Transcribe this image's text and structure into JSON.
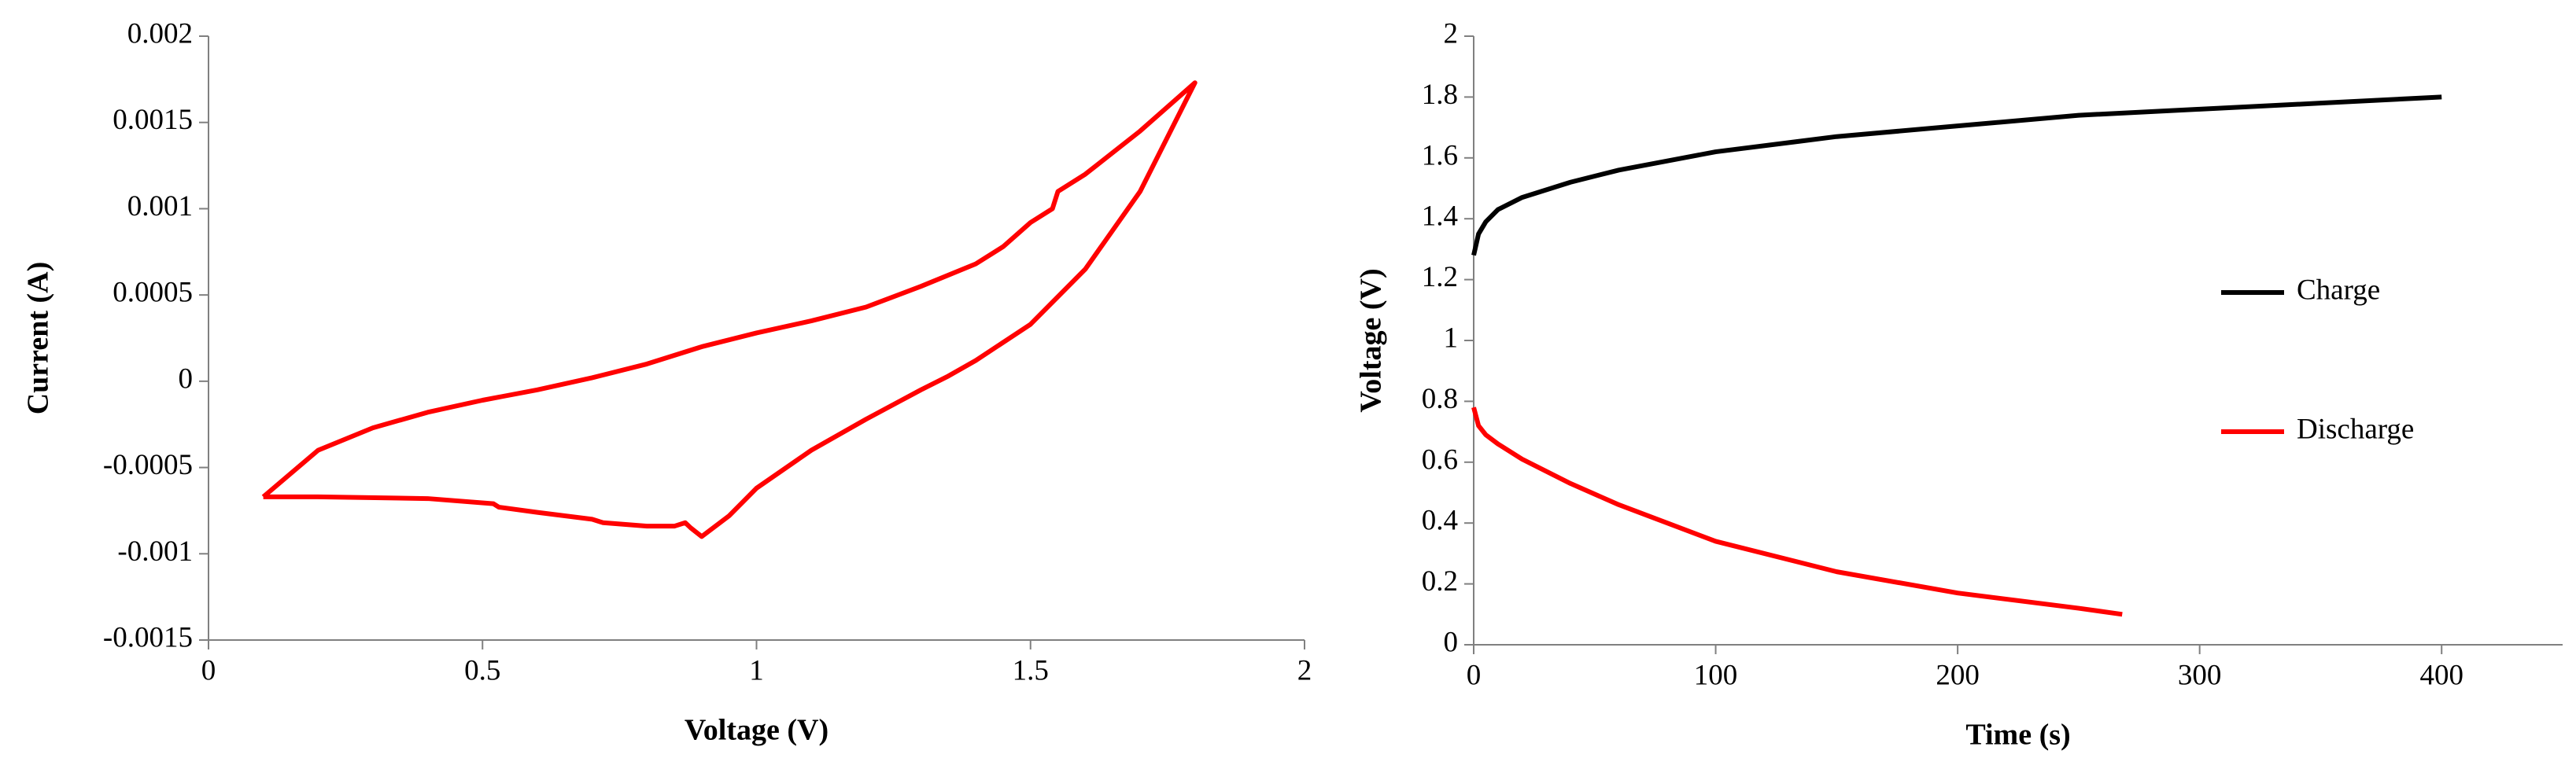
{
  "chart_data": [
    {
      "type": "line",
      "xlabel": "Voltage (V)",
      "ylabel": "Current (A)",
      "xlim": [
        0,
        2
      ],
      "xticks": [
        0,
        0.5,
        1,
        1.5,
        2
      ],
      "ylim": [
        -0.0015,
        0.002
      ],
      "yticks": [
        -0.0015,
        -0.001,
        -0.0005,
        0,
        0.0005,
        0.001,
        0.0015,
        0.002
      ],
      "series": [
        {
          "color": "#ff0000",
          "x": [
            0.1,
            0.2,
            0.3,
            0.4,
            0.5,
            0.6,
            0.7,
            0.8,
            0.9,
            1.0,
            1.1,
            1.2,
            1.3,
            1.4,
            1.45,
            1.5,
            1.54,
            1.55,
            1.6,
            1.7,
            1.8,
            1.7,
            1.6,
            1.5,
            1.4,
            1.35,
            1.3,
            1.2,
            1.1,
            1.0,
            0.95,
            0.9,
            0.88,
            0.87,
            0.85,
            0.8,
            0.72,
            0.7,
            0.6,
            0.53,
            0.52,
            0.4,
            0.2,
            0.1
          ],
          "values": [
            -0.00067,
            -0.0004,
            -0.00027,
            -0.00018,
            -0.00011,
            -5e-05,
            2e-05,
            0.0001,
            0.0002,
            0.00028,
            0.00035,
            0.00043,
            0.00055,
            0.00068,
            0.00078,
            0.00092,
            0.001,
            0.0011,
            0.0012,
            0.00145,
            0.00173,
            0.0011,
            0.00065,
            0.00033,
            0.00012,
            3e-05,
            -5e-05,
            -0.00022,
            -0.0004,
            -0.00062,
            -0.00078,
            -0.0009,
            -0.00085,
            -0.00082,
            -0.00084,
            -0.00084,
            -0.00082,
            -0.0008,
            -0.00076,
            -0.00073,
            -0.00071,
            -0.00068,
            -0.00067,
            -0.00067
          ]
        }
      ]
    },
    {
      "type": "line",
      "xlabel": "Time (s)",
      "ylabel": "Voltage (V)",
      "xlim": [
        0,
        450
      ],
      "xticks": [
        0,
        100,
        200,
        300,
        400
      ],
      "ylim": [
        0,
        2
      ],
      "yticks": [
        0,
        0.2,
        0.4,
        0.6,
        0.8,
        1,
        1.2,
        1.4,
        1.6,
        1.8,
        2
      ],
      "legend": "right",
      "series": [
        {
          "name": "Charge",
          "color": "#000000",
          "x": [
            0,
            2,
            5,
            10,
            20,
            40,
            60,
            80,
            100,
            150,
            200,
            250,
            300,
            350,
            400
          ],
          "values": [
            1.28,
            1.35,
            1.39,
            1.43,
            1.47,
            1.52,
            1.56,
            1.59,
            1.62,
            1.67,
            1.705,
            1.74,
            1.76,
            1.78,
            1.8
          ]
        },
        {
          "name": "Discharge",
          "color": "#ff0000",
          "x": [
            0,
            2,
            5,
            10,
            20,
            40,
            60,
            80,
            100,
            150,
            200,
            250,
            268
          ],
          "values": [
            0.78,
            0.72,
            0.69,
            0.66,
            0.61,
            0.53,
            0.46,
            0.4,
            0.34,
            0.24,
            0.17,
            0.12,
            0.1
          ]
        }
      ]
    }
  ]
}
